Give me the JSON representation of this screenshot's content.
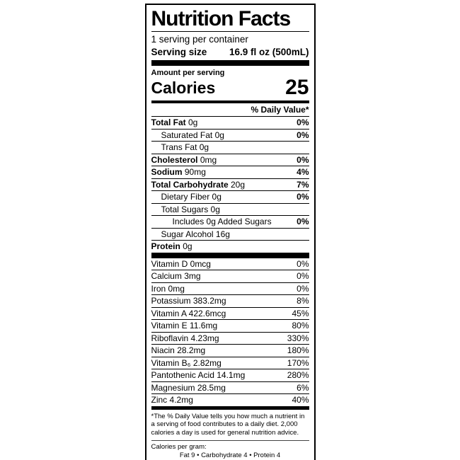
{
  "label": {
    "title": "Nutrition Facts",
    "servings_per_container": "1 serving per container",
    "serving_size": {
      "label": "Serving size",
      "value": "16.9 fl oz (500mL)"
    },
    "amount_per_serving": "Amount per serving",
    "calories": {
      "label": "Calories",
      "value": "25"
    },
    "daily_value_header": "% Daily Value*",
    "nutrients": [
      {
        "name": "Total Fat",
        "amount": "0g",
        "dv": "0%",
        "bold": true,
        "indent": 0
      },
      {
        "name": "Saturated Fat",
        "amount": "0g",
        "dv": "0%",
        "bold": false,
        "indent": 1
      },
      {
        "name": "Trans Fat",
        "amount": "0g",
        "dv": "",
        "bold": false,
        "indent": 1
      },
      {
        "name": "Cholesterol",
        "amount": "0mg",
        "dv": "0%",
        "bold": true,
        "indent": 0
      },
      {
        "name": "Sodium",
        "amount": "90mg",
        "dv": "4%",
        "bold": true,
        "indent": 0
      },
      {
        "name": "Total Carbohydrate",
        "amount": "20g",
        "dv": "7%",
        "bold": true,
        "indent": 0
      },
      {
        "name": "Dietary Fiber",
        "amount": "0g",
        "dv": "0%",
        "bold": false,
        "indent": 1
      },
      {
        "name": "Total Sugars",
        "amount": "0g",
        "dv": "",
        "bold": false,
        "indent": 1
      },
      {
        "name": "Includes 0g Added Sugars",
        "amount": "",
        "dv": "0%",
        "bold": false,
        "indent": 2
      },
      {
        "name": "Sugar Alcohol",
        "amount": "16g",
        "dv": "",
        "bold": false,
        "indent": 1
      },
      {
        "name": "Protein",
        "amount": "0g",
        "dv": "",
        "bold": true,
        "indent": 0
      }
    ],
    "vitamins": [
      {
        "name": "Vitamin D",
        "amount": "0mcg",
        "dv": "0%"
      },
      {
        "name": "Calcium",
        "amount": "3mg",
        "dv": "0%"
      },
      {
        "name": "Iron",
        "amount": "0mg",
        "dv": "0%"
      },
      {
        "name": "Potassium",
        "amount": "383.2mg",
        "dv": "8%"
      },
      {
        "name": "Vitamin A",
        "amount": "422.6mcg",
        "dv": "45%"
      },
      {
        "name": "Vitamin E",
        "amount": "11.6mg",
        "dv": "80%"
      },
      {
        "name": "Riboflavin",
        "amount": "4.23mg",
        "dv": "330%"
      },
      {
        "name": "Niacin",
        "amount": "28.2mg",
        "dv": "180%"
      },
      {
        "name": "Vitamin B₆",
        "amount": "2.82mg",
        "dv": "170%"
      },
      {
        "name": "Pantothenic Acid",
        "amount": "14.1mg",
        "dv": "280%"
      },
      {
        "name": "Magnesium",
        "amount": "28.5mg",
        "dv": "6%"
      },
      {
        "name": "Zinc",
        "amount": "4.2mg",
        "dv": "40%"
      }
    ],
    "footnote": "*The % Daily Value tells you how much a nutrient in a serving of food contributes to a daily diet. 2,000 calories a day is used for general nutrition advice.",
    "calories_per_gram": {
      "label": "Calories per gram:",
      "values": "Fat 9   •   Carbohydrate 4   •   Protein 4"
    },
    "colors": {
      "text": "#000000",
      "background": "#ffffff",
      "border": "#000000"
    }
  }
}
